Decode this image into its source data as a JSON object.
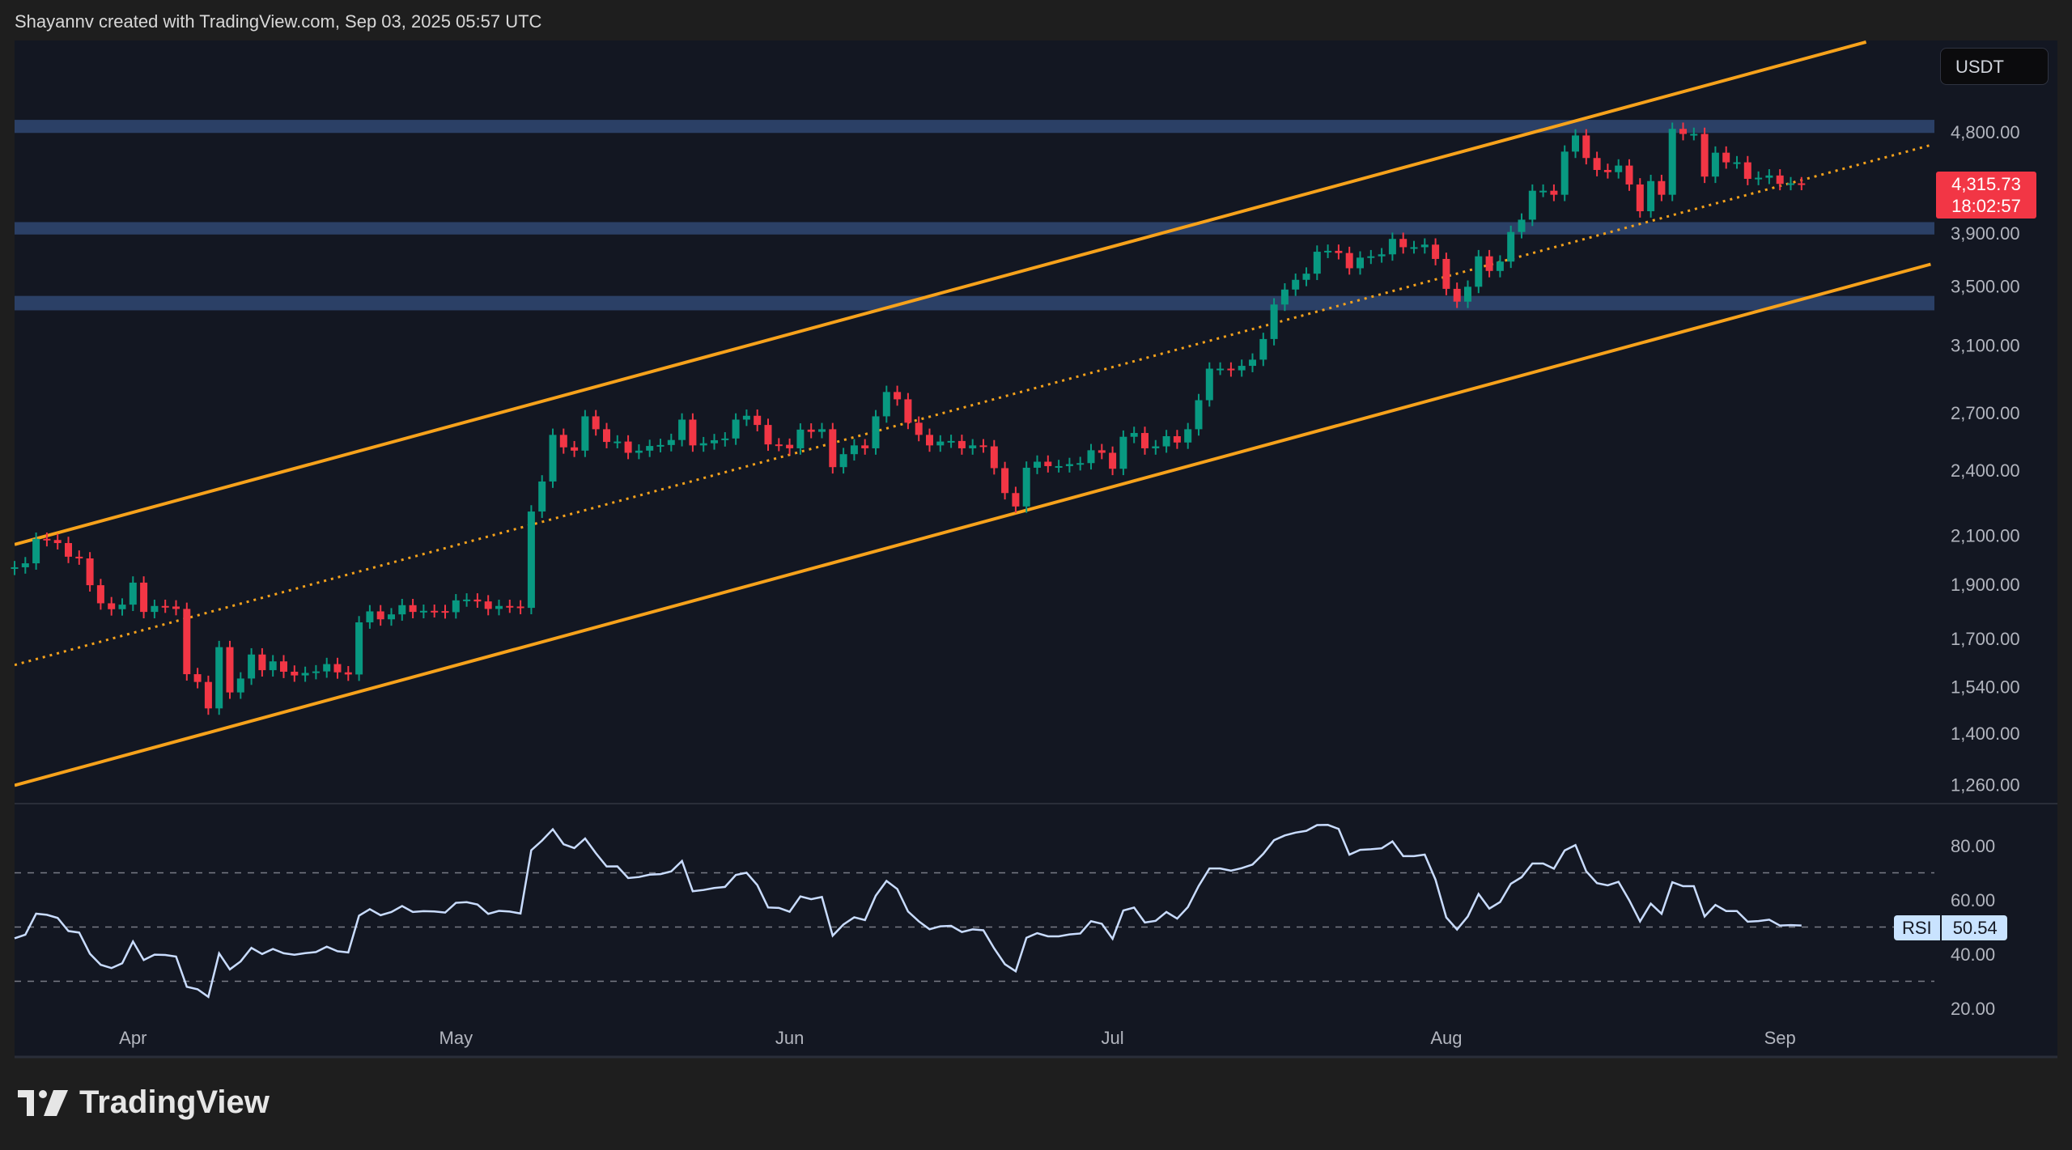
{
  "header": {
    "credit": "Shayannv created with TradingView.com, Sep 03, 2025 05:57 UTC"
  },
  "currency_label": "USDT",
  "last_price": {
    "price": "4,315.73",
    "countdown": "18:02:57"
  },
  "rsi_tag": {
    "label": "RSI",
    "value": "50.54"
  },
  "logo": {
    "text": "TradingView"
  },
  "colors": {
    "up": "#089981",
    "down": "#f23645",
    "channel": "#f7a21b",
    "zone": "#2b4066",
    "rsi_line": "#c9dcff",
    "background": "#131722"
  },
  "chart_data": {
    "type": "candlestick",
    "price_scale": "log",
    "grid": false,
    "start_date": "2025-03-21",
    "interval": "1D",
    "close": [
      1967,
      1983,
      2085,
      2080,
      2067,
      2010,
      2003,
      1896,
      1827,
      1805,
      1822,
      1906,
      1795,
      1817,
      1815,
      1806,
      1580,
      1555,
      1473,
      1670,
      1522,
      1566,
      1645,
      1593,
      1622,
      1588,
      1576,
      1584,
      1589,
      1613,
      1586,
      1579,
      1757,
      1797,
      1768,
      1786,
      1820,
      1795,
      1799,
      1798,
      1794,
      1838,
      1841,
      1834,
      1806,
      1817,
      1815,
      1810,
      2205,
      2345,
      2580,
      2515,
      2498,
      2680,
      2610,
      2543,
      2545,
      2487,
      2498,
      2522,
      2527,
      2553,
      2662,
      2525,
      2536,
      2552,
      2561,
      2662,
      2683,
      2633,
      2530,
      2528,
      2510,
      2608,
      2596,
      2610,
      2415,
      2480,
      2525,
      2510,
      2680,
      2817,
      2775,
      2645,
      2580,
      2525,
      2545,
      2548,
      2510,
      2525,
      2520,
      2410,
      2290,
      2228,
      2412,
      2442,
      2420,
      2420,
      2430,
      2435,
      2500,
      2487,
      2407,
      2570,
      2590,
      2510,
      2520,
      2573,
      2540,
      2610,
      2770,
      2955,
      2955,
      2945,
      2972,
      3010,
      3140,
      3370,
      3475,
      3545,
      3590,
      3755,
      3762,
      3745,
      3630,
      3710,
      3720,
      3735,
      3855,
      3790,
      3790,
      3810,
      3700,
      3480,
      3390,
      3495,
      3720,
      3610,
      3680,
      3910,
      4010,
      4255,
      4255,
      4220,
      4610,
      4765,
      4550,
      4440,
      4420,
      4480,
      4310,
      4080,
      4340,
      4220,
      4830,
      4780,
      4780,
      4380,
      4600,
      4510,
      4510,
      4360,
      4370,
      4390,
      4315,
      4320,
      4315.73
    ],
    "price_ticks": [
      "4,800.00",
      "3,900.00",
      "3,500.00",
      "3,100.00",
      "2,700.00",
      "2,400.00",
      "2,100.00",
      "1,900.00",
      "1,700.00",
      "1,540.00",
      "1,400.00",
      "1,260.00"
    ],
    "price_tick_values": [
      4800,
      3900,
      3500,
      3100,
      2700,
      2400,
      2100,
      1900,
      1700,
      1540,
      1400,
      1260
    ],
    "time_ticks": [
      {
        "label": "Apr",
        "date": "2025-04-01"
      },
      {
        "label": "May",
        "date": "2025-05-01"
      },
      {
        "label": "Jun",
        "date": "2025-06-01"
      },
      {
        "label": "Jul",
        "date": "2025-07-01"
      },
      {
        "label": "Aug",
        "date": "2025-08-01"
      },
      {
        "label": "Sep",
        "date": "2025-09-01"
      }
    ],
    "zones": [
      {
        "low": 4790,
        "high": 4920
      },
      {
        "low": 3890,
        "high": 3990
      },
      {
        "low": 3330,
        "high": 3430
      }
    ],
    "channel_lines": [
      {
        "style": "solid",
        "start_date": "2025-03-21",
        "start_price": 2061,
        "end_date": "2025-09-09",
        "end_price": 5771
      },
      {
        "style": "dotted",
        "start_date": "2025-03-21",
        "start_price": 1610,
        "end_date": "2025-09-15",
        "end_price": 4672
      },
      {
        "style": "solid",
        "start_date": "2025-03-21",
        "start_price": 1258,
        "end_date": "2025-09-15",
        "end_price": 3660
      }
    ],
    "rsi": {
      "period": 14,
      "ticks": [
        "80.00",
        "60.00",
        "40.00",
        "20.00"
      ],
      "tick_values": [
        80,
        60,
        40,
        20
      ],
      "levels": [
        70,
        50,
        30
      ],
      "current": 50.54
    }
  }
}
